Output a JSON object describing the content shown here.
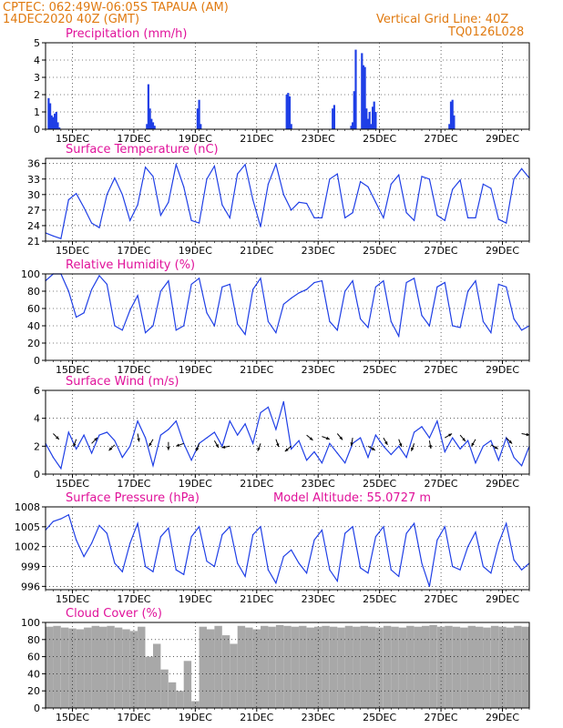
{
  "header": {
    "line1_left": "CPTEC:   062:49W-06:05S   TAPAUA (AM)",
    "line2_left": "14DEC2020 40Z (GMT)",
    "line1_right": "Vertical Grid Line: 40Z",
    "line2_right": "TQ0126L028"
  },
  "colors": {
    "header": "#e07a10",
    "title": "#e0129a",
    "series": "#1f3fe6",
    "cloud": "#a8a8a8",
    "arrow": "#000000"
  },
  "x_ticks": [
    "15DEC",
    "17DEC",
    "19DEC",
    "21DEC",
    "23DEC",
    "25DEC",
    "27DEC",
    "29DEC"
  ],
  "chart_data": [
    {
      "id": "precip",
      "type": "bar",
      "title": "Precipitation (mm/h)",
      "x_unit": "days since 14DEC2020 00Z",
      "xlim": [
        0,
        15.75
      ],
      "ylim": [
        0,
        5
      ],
      "yticks": [
        0,
        1,
        2,
        3,
        4,
        5
      ],
      "x": [
        0.1,
        0.15,
        0.2,
        0.25,
        0.3,
        0.35,
        0.4,
        0.45,
        3.3,
        3.35,
        3.4,
        3.45,
        3.5,
        3.55,
        4.95,
        5.0,
        5.05,
        7.85,
        7.9,
        7.95,
        8.0,
        9.35,
        9.4,
        9.95,
        10.0,
        10.05,
        10.1,
        10.3,
        10.35,
        10.4,
        10.45,
        10.5,
        10.55,
        10.6,
        10.65,
        10.7,
        10.75,
        13.15,
        13.2,
        13.25,
        13.3
      ],
      "values": [
        1.8,
        1.5,
        0.8,
        0.7,
        0.9,
        1.0,
        0.4,
        0.1,
        0.3,
        2.6,
        1.2,
        0.6,
        0.4,
        0.2,
        1.2,
        1.7,
        0.3,
        2.0,
        2.1,
        1.9,
        0.3,
        1.2,
        1.4,
        0.2,
        0.4,
        2.2,
        4.6,
        4.4,
        3.7,
        3.6,
        1.2,
        0.6,
        1.0,
        0.3,
        1.3,
        1.6,
        1.0,
        0.3,
        1.6,
        1.7,
        0.8
      ]
    },
    {
      "id": "temp",
      "type": "line",
      "title": "Surface Temperature (nC)",
      "x_unit": "days since 14DEC2020 00Z",
      "xlim": [
        0,
        15.75
      ],
      "ylim": [
        21,
        37
      ],
      "yticks": [
        21,
        24,
        27,
        30,
        33,
        36
      ],
      "x": [
        0,
        0.25,
        0.5,
        0.75,
        1.0,
        1.25,
        1.5,
        1.75,
        2.0,
        2.25,
        2.5,
        2.75,
        3.0,
        3.25,
        3.5,
        3.75,
        4.0,
        4.25,
        4.5,
        4.75,
        5.0,
        5.25,
        5.5,
        5.75,
        6.0,
        6.25,
        6.5,
        6.75,
        7.0,
        7.25,
        7.5,
        7.75,
        8.0,
        8.25,
        8.5,
        8.75,
        9.0,
        9.25,
        9.5,
        9.75,
        10.0,
        10.25,
        10.5,
        10.75,
        11.0,
        11.25,
        11.5,
        11.75,
        12.0,
        12.25,
        12.5,
        12.75,
        13.0,
        13.25,
        13.5,
        13.75,
        14.0,
        14.25,
        14.5,
        14.75,
        15.0,
        15.25,
        15.5,
        15.75
      ],
      "values": [
        22.6,
        22.0,
        21.5,
        29.0,
        30.2,
        27.5,
        24.5,
        23.6,
        30.0,
        33.2,
        30.0,
        25.0,
        28.0,
        35.3,
        33.5,
        26.0,
        28.5,
        35.8,
        31.5,
        25.0,
        24.5,
        33.0,
        35.5,
        28.0,
        25.5,
        34.0,
        35.8,
        29.0,
        23.8,
        32.0,
        35.9,
        30.0,
        27.0,
        28.5,
        28.3,
        25.5,
        25.5,
        33.0,
        34.0,
        25.5,
        26.5,
        32.5,
        31.5,
        28.5,
        25.5,
        32.0,
        33.8,
        26.5,
        25.0,
        33.5,
        33.0,
        26.0,
        25.0,
        31.0,
        32.8,
        25.5,
        25.5,
        32.0,
        31.2,
        25.2,
        24.5,
        33.0,
        35.0,
        33.2
      ]
    },
    {
      "id": "rh",
      "type": "line",
      "title": "Relative Humidity (%)",
      "x_unit": "days since 14DEC2020 00Z",
      "xlim": [
        0,
        15.75
      ],
      "ylim": [
        0,
        100
      ],
      "yticks": [
        0,
        20,
        40,
        60,
        80,
        100
      ],
      "x": [
        0,
        0.25,
        0.5,
        0.75,
        1.0,
        1.25,
        1.5,
        1.75,
        2.0,
        2.25,
        2.5,
        2.75,
        3.0,
        3.25,
        3.5,
        3.75,
        4.0,
        4.25,
        4.5,
        4.75,
        5.0,
        5.25,
        5.5,
        5.75,
        6.0,
        6.25,
        6.5,
        6.75,
        7.0,
        7.25,
        7.5,
        7.75,
        8.0,
        8.25,
        8.5,
        8.75,
        9.0,
        9.25,
        9.5,
        9.75,
        10.0,
        10.25,
        10.5,
        10.75,
        11.0,
        11.25,
        11.5,
        11.75,
        12.0,
        12.25,
        12.5,
        12.75,
        13.0,
        13.25,
        13.5,
        13.75,
        14.0,
        14.25,
        14.5,
        14.75,
        15.0,
        15.25,
        15.5,
        15.75
      ],
      "values": [
        92,
        100,
        100,
        80,
        50,
        55,
        82,
        98,
        88,
        40,
        35,
        58,
        75,
        32,
        40,
        80,
        92,
        35,
        40,
        88,
        95,
        55,
        40,
        85,
        88,
        42,
        30,
        82,
        95,
        45,
        32,
        65,
        72,
        78,
        82,
        90,
        92,
        45,
        35,
        80,
        92,
        48,
        38,
        85,
        92,
        45,
        28,
        90,
        95,
        52,
        40,
        85,
        90,
        40,
        38,
        80,
        92,
        45,
        32,
        88,
        85,
        48,
        35,
        40
      ]
    },
    {
      "id": "wind",
      "type": "line",
      "title": "Surface Wind (m/s)",
      "x_unit": "days since 14DEC2020 00Z",
      "xlim": [
        0,
        15.75
      ],
      "ylim": [
        0,
        6
      ],
      "yticks": [
        0,
        2,
        4,
        6
      ],
      "x": [
        0,
        0.25,
        0.5,
        0.75,
        1.0,
        1.25,
        1.5,
        1.75,
        2.0,
        2.25,
        2.5,
        2.75,
        3.0,
        3.25,
        3.5,
        3.75,
        4.0,
        4.25,
        4.5,
        4.75,
        5.0,
        5.25,
        5.5,
        5.75,
        6.0,
        6.25,
        6.5,
        6.75,
        7.0,
        7.25,
        7.5,
        7.75,
        8.0,
        8.25,
        8.5,
        8.75,
        9.0,
        9.25,
        9.5,
        9.75,
        10.0,
        10.25,
        10.5,
        10.75,
        11.0,
        11.25,
        11.5,
        11.75,
        12.0,
        12.25,
        12.5,
        12.75,
        13.0,
        13.25,
        13.5,
        13.75,
        14.0,
        14.25,
        14.5,
        14.75,
        15.0,
        15.25,
        15.5,
        15.75
      ],
      "values": [
        2.2,
        1.2,
        0.4,
        3.0,
        1.8,
        2.8,
        1.5,
        2.8,
        3.0,
        2.4,
        1.2,
        2.0,
        3.8,
        2.6,
        0.6,
        2.8,
        3.2,
        3.8,
        2.2,
        1.0,
        2.2,
        2.6,
        3.0,
        2.0,
        3.8,
        2.8,
        3.6,
        2.2,
        4.4,
        4.8,
        3.2,
        5.2,
        1.8,
        2.4,
        1.0,
        1.6,
        0.8,
        2.2,
        1.5,
        0.8,
        2.2,
        2.6,
        1.2,
        2.8,
        2.0,
        1.4,
        2.0,
        1.2,
        3.0,
        3.4,
        2.6,
        3.8,
        1.6,
        2.6,
        1.8,
        2.4,
        0.8,
        2.0,
        2.4,
        1.0,
        2.6,
        1.2,
        0.6,
        2.0
      ]
    },
    {
      "id": "pres",
      "type": "line",
      "title": "Surface Pressure (hPa)",
      "x_unit": "days since 14DEC2020 00Z",
      "xlim": [
        0,
        15.75
      ],
      "ylim": [
        995.5,
        1008
      ],
      "yticks": [
        996,
        999,
        1002,
        1005,
        1008
      ],
      "x": [
        0,
        0.25,
        0.5,
        0.75,
        1.0,
        1.25,
        1.5,
        1.75,
        2.0,
        2.25,
        2.5,
        2.75,
        3.0,
        3.25,
        3.5,
        3.75,
        4.0,
        4.25,
        4.5,
        4.75,
        5.0,
        5.25,
        5.5,
        5.75,
        6.0,
        6.25,
        6.5,
        6.75,
        7.0,
        7.25,
        7.5,
        7.75,
        8.0,
        8.25,
        8.5,
        8.75,
        9.0,
        9.25,
        9.5,
        9.75,
        10.0,
        10.25,
        10.5,
        10.75,
        11.0,
        11.25,
        11.5,
        11.75,
        12.0,
        12.25,
        12.5,
        12.75,
        13.0,
        13.25,
        13.5,
        13.75,
        14.0,
        14.25,
        14.5,
        14.75,
        15.0,
        15.25,
        15.5,
        15.75
      ],
      "values": [
        1004.5,
        1005.8,
        1006.2,
        1006.8,
        1003.0,
        1000.5,
        1002.5,
        1005.2,
        1004.0,
        999.5,
        998.2,
        1002.5,
        1005.5,
        999.0,
        998.2,
        1003.5,
        1004.8,
        998.5,
        997.8,
        1003.5,
        1005.0,
        999.8,
        999.0,
        1003.8,
        1005.0,
        999.5,
        997.5,
        1003.8,
        1005.0,
        998.5,
        996.5,
        1000.5,
        1001.5,
        999.5,
        998.0,
        1003.0,
        1004.5,
        998.5,
        996.8,
        1004.0,
        1005.0,
        998.8,
        998.0,
        1003.5,
        1005.0,
        998.5,
        997.5,
        1004.0,
        1005.5,
        999.5,
        996.0,
        1003.0,
        1005.0,
        999.0,
        998.5,
        1002.0,
        1004.2,
        999.0,
        998.0,
        1002.5,
        1005.5,
        1000.0,
        998.5,
        999.5
      ]
    },
    {
      "id": "cloud",
      "type": "bar",
      "title": "Cloud Cover (%)",
      "x_unit": "days since 14DEC2020 00Z",
      "xlim": [
        0,
        15.75
      ],
      "ylim": [
        0,
        100
      ],
      "yticks": [
        0,
        20,
        40,
        60,
        80,
        100
      ],
      "x": [
        0,
        0.25,
        0.5,
        0.75,
        1.0,
        1.25,
        1.5,
        1.75,
        2.0,
        2.25,
        2.5,
        2.75,
        3.0,
        3.25,
        3.5,
        3.75,
        4.0,
        4.25,
        4.5,
        4.75,
        5.0,
        5.25,
        5.5,
        5.75,
        6.0,
        6.25,
        6.5,
        6.75,
        7.0,
        7.25,
        7.5,
        7.75,
        8.0,
        8.25,
        8.5,
        8.75,
        9.0,
        9.25,
        9.5,
        9.75,
        10.0,
        10.25,
        10.5,
        10.75,
        11.0,
        11.25,
        11.5,
        11.75,
        12.0,
        12.25,
        12.5,
        12.75,
        13.0,
        13.25,
        13.5,
        13.75,
        14.0,
        14.25,
        14.5,
        14.75,
        15.0,
        15.25,
        15.5,
        15.75
      ],
      "values": [
        95,
        96,
        94,
        93,
        92,
        94,
        96,
        95,
        96,
        94,
        92,
        90,
        95,
        60,
        75,
        45,
        30,
        20,
        55,
        8,
        95,
        92,
        96,
        85,
        75,
        96,
        94,
        92,
        96,
        95,
        97,
        96,
        95,
        96,
        94,
        95,
        96,
        95,
        94,
        96,
        95,
        96,
        95,
        94,
        96,
        95,
        94,
        96,
        95,
        96,
        97,
        95,
        96,
        95,
        94,
        96,
        95,
        94,
        96,
        95,
        94,
        96,
        95,
        96
      ]
    },
    {
      "id": "wind_vectors",
      "type": "vector",
      "x_unit": "days since 14DEC2020 00Z",
      "x": [
        0.25,
        1.0,
        1.5,
        2.25,
        3.0,
        3.5,
        4.0,
        4.5,
        5.0,
        5.5,
        6.0,
        7.0,
        7.5,
        8.0,
        8.5,
        9.0,
        9.5,
        10.0,
        10.5,
        11.0,
        11.5,
        12.0,
        12.5,
        13.0,
        13.5,
        14.0,
        14.5,
        15.0,
        15.5
      ],
      "level": [
        2.9,
        2.5,
        2.2,
        2.1,
        2.9,
        2.5,
        2.3,
        2.2,
        2.2,
        2.4,
        2.0,
        2.2,
        2.5,
        2.0,
        2.8,
        2.7,
        2.9,
        2.6,
        2.0,
        2.6,
        2.5,
        2.2,
        2.4,
        2.6,
        2.8,
        2.5,
        2.1,
        2.6,
        2.9
      ],
      "dir_deg": [
        135,
        200,
        45,
        225,
        170,
        210,
        180,
        250,
        200,
        150,
        260,
        200,
        160,
        230,
        130,
        110,
        140,
        190,
        120,
        150,
        160,
        200,
        170,
        60,
        140,
        210,
        120,
        135,
        100
      ]
    }
  ],
  "panel_extra": {
    "pres_extra": "Model Altitude: 55.0727 m"
  }
}
